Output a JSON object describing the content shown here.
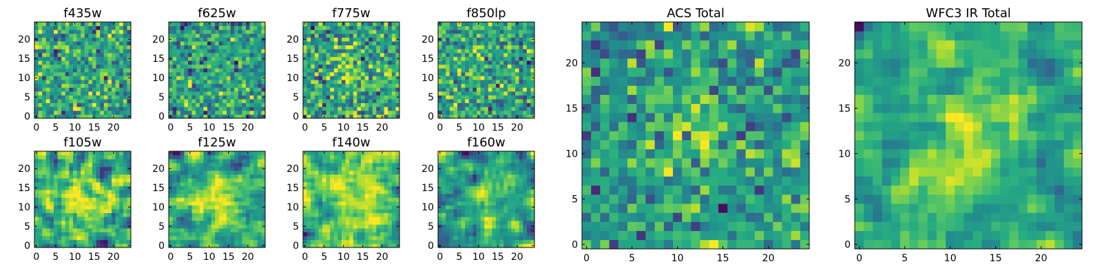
{
  "figure": {
    "description": "Multi-band image cutouts of a source"
  },
  "chart_data": [
    {
      "type": "heatmap",
      "title": "f435w",
      "grid_size": 25,
      "xticks": [
        "0",
        "5",
        "10",
        "15",
        "20"
      ],
      "yticks": [
        "0",
        "5",
        "10",
        "15",
        "20"
      ],
      "xlim": [
        -0.5,
        24.5
      ],
      "ylim": [
        -0.5,
        24.5
      ],
      "colormap": "viridis",
      "signal_strength": 0.0,
      "noise_seed": 11,
      "smoothing": 0
    },
    {
      "type": "heatmap",
      "title": "f625w",
      "grid_size": 25,
      "xticks": [
        "0",
        "5",
        "10",
        "15",
        "20"
      ],
      "yticks": [
        "0",
        "5",
        "10",
        "15",
        "20"
      ],
      "xlim": [
        -0.5,
        24.5
      ],
      "ylim": [
        -0.5,
        24.5
      ],
      "colormap": "viridis",
      "signal_strength": 0.15,
      "noise_seed": 23,
      "smoothing": 0
    },
    {
      "type": "heatmap",
      "title": "f775w",
      "grid_size": 25,
      "xticks": [
        "0",
        "5",
        "10",
        "15",
        "20"
      ],
      "yticks": [
        "0",
        "5",
        "10",
        "15",
        "20"
      ],
      "xlim": [
        -0.5,
        24.5
      ],
      "ylim": [
        -0.5,
        24.5
      ],
      "colormap": "viridis",
      "signal_strength": 0.3,
      "noise_seed": 37,
      "smoothing": 0
    },
    {
      "type": "heatmap",
      "title": "f850lp",
      "grid_size": 25,
      "xticks": [
        "0",
        "5",
        "10",
        "15",
        "20"
      ],
      "yticks": [
        "0",
        "5",
        "10",
        "15",
        "20"
      ],
      "xlim": [
        -0.5,
        24.5
      ],
      "ylim": [
        -0.5,
        24.5
      ],
      "colormap": "viridis",
      "signal_strength": 0.1,
      "noise_seed": 41,
      "smoothing": 0
    },
    {
      "type": "heatmap",
      "title": "f105w",
      "grid_size": 25,
      "xticks": [
        "0",
        "5",
        "10",
        "15",
        "20"
      ],
      "yticks": [
        "0",
        "5",
        "10",
        "15",
        "20"
      ],
      "xlim": [
        -0.5,
        24.5
      ],
      "ylim": [
        -0.5,
        24.5
      ],
      "colormap": "viridis",
      "signal_strength": 0.5,
      "noise_seed": 53,
      "smoothing": 1
    },
    {
      "type": "heatmap",
      "title": "f125w",
      "grid_size": 25,
      "xticks": [
        "0",
        "5",
        "10",
        "15",
        "20"
      ],
      "yticks": [
        "0",
        "5",
        "10",
        "15",
        "20"
      ],
      "xlim": [
        -0.5,
        24.5
      ],
      "ylim": [
        -0.5,
        24.5
      ],
      "colormap": "viridis",
      "signal_strength": 0.7,
      "noise_seed": 67,
      "smoothing": 1
    },
    {
      "type": "heatmap",
      "title": "f140w",
      "grid_size": 25,
      "xticks": [
        "0",
        "5",
        "10",
        "15",
        "20"
      ],
      "yticks": [
        "0",
        "5",
        "10",
        "15",
        "20"
      ],
      "xlim": [
        -0.5,
        24.5
      ],
      "ylim": [
        -0.5,
        24.5
      ],
      "colormap": "viridis",
      "signal_strength": 0.6,
      "noise_seed": 79,
      "smoothing": 1
    },
    {
      "type": "heatmap",
      "title": "f160w",
      "grid_size": 25,
      "xticks": [
        "0",
        "5",
        "10",
        "15",
        "20"
      ],
      "yticks": [
        "0",
        "5",
        "10",
        "15",
        "20"
      ],
      "xlim": [
        -0.5,
        24.5
      ],
      "ylim": [
        -0.5,
        24.5
      ],
      "colormap": "viridis",
      "signal_strength": 0.55,
      "noise_seed": 83,
      "smoothing": 1
    },
    {
      "type": "heatmap",
      "title": "ACS Total",
      "grid_size": 25,
      "xticks": [
        "0",
        "5",
        "10",
        "15",
        "20"
      ],
      "yticks": [
        "0",
        "5",
        "10",
        "15",
        "20"
      ],
      "xlim": [
        -0.5,
        24.5
      ],
      "ylim": [
        -0.5,
        24.5
      ],
      "colormap": "viridis",
      "signal_strength": 0.55,
      "noise_seed": 97,
      "smoothing": 0
    },
    {
      "type": "heatmap",
      "title": "WFC3 IR Total",
      "grid_size": 25,
      "xticks": [
        "0",
        "5",
        "10",
        "15",
        "20"
      ],
      "yticks": [
        "0",
        "5",
        "10",
        "15",
        "20"
      ],
      "xlim": [
        -0.5,
        24.5
      ],
      "ylim": [
        -0.5,
        24.5
      ],
      "colormap": "viridis",
      "signal_strength": 0.9,
      "noise_seed": 101,
      "smoothing": 1
    }
  ]
}
